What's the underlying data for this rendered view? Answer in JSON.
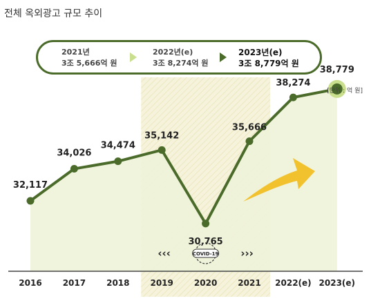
{
  "title": "전체 옥외광고 규모 추이",
  "summary": [
    {
      "year": "2021년",
      "amount": "3조 5,666억 원"
    },
    {
      "year": "2022년(e)",
      "amount": "3조 8,274억 원"
    },
    {
      "year": "2023년(e)",
      "amount": "3조 8,779억 원"
    }
  ],
  "unit_label": "[단위 : 억 원]",
  "covid_label": "COVID-19",
  "colors": {
    "line": "#4a6b2a",
    "area": "#eef3d9",
    "covid_band": "#f6f3dc",
    "arrow": "#f2c12e",
    "highlight": "#c9df8e"
  },
  "chart_data": {
    "type": "line",
    "title": "전체 옥외광고 규모 추이",
    "categories": [
      "2016",
      "2017",
      "2018",
      "2019",
      "2020",
      "2021",
      "2022(e)",
      "2023(e)"
    ],
    "values": [
      32117,
      34026,
      34474,
      35142,
      30765,
      35666,
      38274,
      38779
    ],
    "value_labels": [
      "32,117",
      "34,026",
      "34,474",
      "35,142",
      "30,765",
      "35,666",
      "38,274",
      "38,779"
    ],
    "ylabel": "억 원",
    "highlight_range": [
      "2019",
      "2021"
    ],
    "grid": false,
    "legend": "none"
  }
}
